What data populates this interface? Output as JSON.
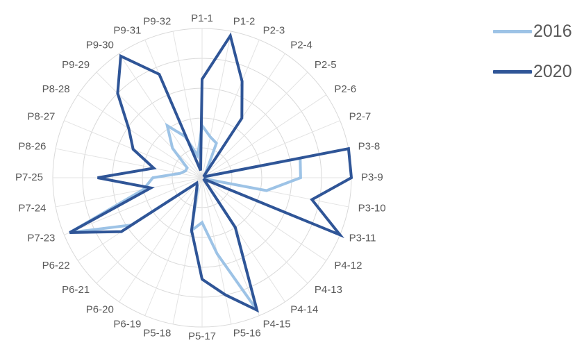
{
  "chart_data": {
    "type": "radar",
    "title": "",
    "categories": [
      "P1-1",
      "P1-2",
      "P2-3",
      "P2-4",
      "P2-5",
      "P2-6",
      "P2-7",
      "P3-8",
      "P3-9",
      "P3-10",
      "P3-11",
      "P4-12",
      "P4-13",
      "P4-14",
      "P4-15",
      "P5-16",
      "P5-17",
      "P5-18",
      "P6-19",
      "P6-20",
      "P6-21",
      "P6-22",
      "P7-23",
      "P7-24",
      "P7-25",
      "P8-26",
      "P8-27",
      "P8-28",
      "P9-29",
      "P9-30",
      "P9-31",
      "P9-32"
    ],
    "rmax": 1.0,
    "rings": 5,
    "grid": true,
    "legend_position": "top-right",
    "series": [
      {
        "name": "2016",
        "color": "#9dc3e6",
        "values": [
          0.35,
          0.28,
          0.25,
          0.05,
          0.03,
          0.02,
          0.02,
          0.67,
          0.66,
          0.44,
          0.02,
          0.02,
          0.02,
          0.4,
          0.96,
          0.52,
          0.3,
          0.36,
          0.08,
          0.06,
          0.05,
          0.57,
          0.96,
          0.4,
          0.33,
          0.15,
          0.12,
          0.12,
          0.28,
          0.42,
          0.3,
          0.15
        ]
      },
      {
        "name": "2020",
        "color": "#2f5597",
        "values": [
          0.66,
          0.97,
          0.7,
          0.48,
          0.02,
          0.02,
          0.02,
          1.0,
          1.0,
          0.75,
          1.0,
          0.02,
          0.02,
          0.4,
          0.96,
          0.8,
          0.68,
          0.36,
          0.1,
          0.06,
          0.05,
          0.65,
          0.96,
          0.35,
          0.7,
          0.33,
          0.5,
          0.59,
          0.8,
          0.98,
          0.75,
          0.05
        ]
      }
    ]
  }
}
